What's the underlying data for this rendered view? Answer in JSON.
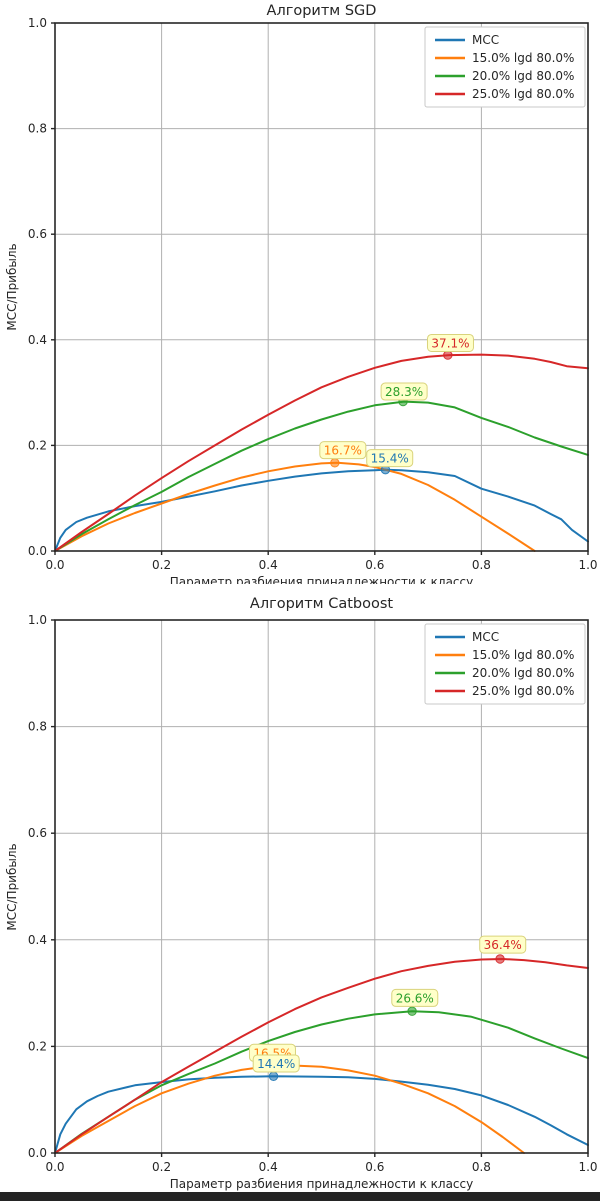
{
  "palette": {
    "blue": "#1f77b4",
    "orange": "#ff7f0e",
    "green": "#2ca02c",
    "red": "#d62728",
    "grid": "#b0b0b0",
    "spine": "#262626",
    "text": "#262626",
    "legend_bg": "#ffffff",
    "legend_border": "#c8c8c8",
    "annotation_bg": "#ffffc9",
    "annotation_border": "#d9d37c",
    "bottom_bar": "#242424"
  },
  "chart_data": [
    {
      "type": "line",
      "title": "Алгоритм SGD",
      "xlabel": "Параметр разбиения принадлежности к классу",
      "ylabel": "MCC/Прибыль",
      "xlim": [
        0.0,
        1.0
      ],
      "ylim": [
        0.0,
        1.0
      ],
      "xticks": [
        "0.0",
        "0.2",
        "0.4",
        "0.6",
        "0.8",
        "1.0"
      ],
      "yticks": [
        "0.0",
        "0.2",
        "0.4",
        "0.6",
        "0.8",
        "1.0"
      ],
      "grid": true,
      "legend_position": "upper right",
      "series": [
        {
          "name": "MCC",
          "color_key": "blue",
          "points": [
            [
              0,
              0
            ],
            [
              0.01,
              0.025
            ],
            [
              0.02,
              0.04
            ],
            [
              0.04,
              0.055
            ],
            [
              0.06,
              0.063
            ],
            [
              0.1,
              0.075
            ],
            [
              0.15,
              0.085
            ],
            [
              0.2,
              0.093
            ],
            [
              0.25,
              0.103
            ],
            [
              0.3,
              0.113
            ],
            [
              0.35,
              0.124
            ],
            [
              0.4,
              0.133
            ],
            [
              0.45,
              0.141
            ],
            [
              0.5,
              0.147
            ],
            [
              0.55,
              0.151
            ],
            [
              0.6,
              0.153
            ],
            [
              0.62,
              0.154
            ],
            [
              0.65,
              0.153
            ],
            [
              0.7,
              0.149
            ],
            [
              0.75,
              0.142
            ],
            [
              0.8,
              0.118
            ],
            [
              0.85,
              0.103
            ],
            [
              0.9,
              0.086
            ],
            [
              0.93,
              0.07
            ],
            [
              0.95,
              0.06
            ],
            [
              0.97,
              0.04
            ],
            [
              1.0,
              0.018
            ]
          ]
        },
        {
          "name": "15.0% lgd 80.0%",
          "color_key": "orange",
          "points": [
            [
              0,
              0
            ],
            [
              0.05,
              0.028
            ],
            [
              0.1,
              0.052
            ],
            [
              0.15,
              0.072
            ],
            [
              0.2,
              0.09
            ],
            [
              0.25,
              0.108
            ],
            [
              0.3,
              0.124
            ],
            [
              0.35,
              0.139
            ],
            [
              0.4,
              0.151
            ],
            [
              0.45,
              0.16
            ],
            [
              0.5,
              0.166
            ],
            [
              0.53,
              0.167
            ],
            [
              0.57,
              0.164
            ],
            [
              0.6,
              0.159
            ],
            [
              0.65,
              0.146
            ],
            [
              0.7,
              0.125
            ],
            [
              0.75,
              0.097
            ],
            [
              0.8,
              0.065
            ],
            [
              0.85,
              0.033
            ],
            [
              0.9,
              0.0
            ]
          ]
        },
        {
          "name": "20.0% lgd 80.0%",
          "color_key": "green",
          "points": [
            [
              0,
              0
            ],
            [
              0.05,
              0.032
            ],
            [
              0.1,
              0.06
            ],
            [
              0.15,
              0.087
            ],
            [
              0.2,
              0.112
            ],
            [
              0.25,
              0.14
            ],
            [
              0.3,
              0.165
            ],
            [
              0.35,
              0.19
            ],
            [
              0.4,
              0.212
            ],
            [
              0.45,
              0.232
            ],
            [
              0.5,
              0.249
            ],
            [
              0.55,
              0.264
            ],
            [
              0.6,
              0.276
            ],
            [
              0.655,
              0.283
            ],
            [
              0.7,
              0.281
            ],
            [
              0.75,
              0.272
            ],
            [
              0.8,
              0.252
            ],
            [
              0.85,
              0.235
            ],
            [
              0.9,
              0.215
            ],
            [
              0.95,
              0.198
            ],
            [
              1.0,
              0.182
            ]
          ]
        },
        {
          "name": "25.0% lgd 80.0%",
          "color_key": "red",
          "points": [
            [
              0,
              0
            ],
            [
              0.05,
              0.036
            ],
            [
              0.1,
              0.07
            ],
            [
              0.15,
              0.105
            ],
            [
              0.2,
              0.138
            ],
            [
              0.25,
              0.17
            ],
            [
              0.3,
              0.2
            ],
            [
              0.35,
              0.23
            ],
            [
              0.4,
              0.258
            ],
            [
              0.45,
              0.285
            ],
            [
              0.5,
              0.31
            ],
            [
              0.55,
              0.33
            ],
            [
              0.6,
              0.347
            ],
            [
              0.65,
              0.36
            ],
            [
              0.7,
              0.368
            ],
            [
              0.74,
              0.371
            ],
            [
              0.8,
              0.372
            ],
            [
              0.85,
              0.37
            ],
            [
              0.9,
              0.364
            ],
            [
              0.93,
              0.358
            ],
            [
              0.96,
              0.35
            ],
            [
              1.0,
              0.346
            ]
          ]
        }
      ],
      "annotations": [
        {
          "text": "16.7%",
          "color_key": "orange",
          "marker": [
            0.525,
            0.167
          ],
          "label_center": [
            0.54,
            0.191
          ]
        },
        {
          "text": "15.4%",
          "color_key": "blue",
          "marker": [
            0.62,
            0.154
          ],
          "label_center": [
            0.628,
            0.176
          ]
        },
        {
          "text": "28.3%",
          "color_key": "green",
          "marker": [
            0.653,
            0.283
          ],
          "label_center": [
            0.655,
            0.302
          ]
        },
        {
          "text": "37.1%",
          "color_key": "red",
          "marker": [
            0.737,
            0.371
          ],
          "label_center": [
            0.742,
            0.394
          ]
        }
      ]
    },
    {
      "type": "line",
      "title": "Алгоритм Catboost",
      "xlabel": "Параметр разбиения принадлежности к классу",
      "ylabel": "MCC/Прибыль",
      "xlim": [
        0.0,
        1.0
      ],
      "ylim": [
        0.0,
        1.0
      ],
      "xticks": [
        "0.0",
        "0.2",
        "0.4",
        "0.6",
        "0.8",
        "1.0"
      ],
      "yticks": [
        "0.0",
        "0.2",
        "0.4",
        "0.6",
        "0.8",
        "1.0"
      ],
      "grid": true,
      "legend_position": "upper right",
      "series": [
        {
          "name": "MCC",
          "color_key": "blue",
          "points": [
            [
              0,
              0
            ],
            [
              0.01,
              0.035
            ],
            [
              0.02,
              0.055
            ],
            [
              0.04,
              0.082
            ],
            [
              0.06,
              0.097
            ],
            [
              0.08,
              0.107
            ],
            [
              0.1,
              0.115
            ],
            [
              0.15,
              0.127
            ],
            [
              0.2,
              0.133
            ],
            [
              0.25,
              0.138
            ],
            [
              0.3,
              0.141
            ],
            [
              0.35,
              0.143
            ],
            [
              0.41,
              0.144
            ],
            [
              0.5,
              0.143
            ],
            [
              0.55,
              0.142
            ],
            [
              0.6,
              0.139
            ],
            [
              0.65,
              0.134
            ],
            [
              0.7,
              0.128
            ],
            [
              0.75,
              0.12
            ],
            [
              0.8,
              0.108
            ],
            [
              0.85,
              0.09
            ],
            [
              0.9,
              0.068
            ],
            [
              0.93,
              0.052
            ],
            [
              0.96,
              0.035
            ],
            [
              1.0,
              0.015
            ]
          ]
        },
        {
          "name": "15.0% lgd 80.0%",
          "color_key": "orange",
          "points": [
            [
              0,
              0
            ],
            [
              0.05,
              0.032
            ],
            [
              0.1,
              0.06
            ],
            [
              0.15,
              0.088
            ],
            [
              0.2,
              0.112
            ],
            [
              0.25,
              0.13
            ],
            [
              0.3,
              0.145
            ],
            [
              0.35,
              0.156
            ],
            [
              0.4,
              0.163
            ],
            [
              0.43,
              0.165
            ],
            [
              0.5,
              0.162
            ],
            [
              0.55,
              0.155
            ],
            [
              0.6,
              0.145
            ],
            [
              0.65,
              0.13
            ],
            [
              0.7,
              0.112
            ],
            [
              0.75,
              0.088
            ],
            [
              0.8,
              0.058
            ],
            [
              0.84,
              0.03
            ],
            [
              0.88,
              0.0
            ]
          ]
        },
        {
          "name": "20.0% lgd 80.0%",
          "color_key": "green",
          "points": [
            [
              0,
              0
            ],
            [
              0.05,
              0.036
            ],
            [
              0.1,
              0.068
            ],
            [
              0.15,
              0.1
            ],
            [
              0.2,
              0.127
            ],
            [
              0.25,
              0.148
            ],
            [
              0.3,
              0.168
            ],
            [
              0.35,
              0.19
            ],
            [
              0.4,
              0.21
            ],
            [
              0.45,
              0.227
            ],
            [
              0.5,
              0.241
            ],
            [
              0.55,
              0.252
            ],
            [
              0.6,
              0.26
            ],
            [
              0.67,
              0.266
            ],
            [
              0.72,
              0.264
            ],
            [
              0.78,
              0.256
            ],
            [
              0.85,
              0.235
            ],
            [
              0.9,
              0.215
            ],
            [
              0.95,
              0.196
            ],
            [
              1.0,
              0.178
            ]
          ]
        },
        {
          "name": "25.0% lgd 80.0%",
          "color_key": "red",
          "points": [
            [
              0,
              0
            ],
            [
              0.05,
              0.035
            ],
            [
              0.1,
              0.068
            ],
            [
              0.15,
              0.1
            ],
            [
              0.2,
              0.133
            ],
            [
              0.25,
              0.162
            ],
            [
              0.3,
              0.19
            ],
            [
              0.35,
              0.218
            ],
            [
              0.4,
              0.245
            ],
            [
              0.45,
              0.27
            ],
            [
              0.5,
              0.292
            ],
            [
              0.55,
              0.31
            ],
            [
              0.6,
              0.327
            ],
            [
              0.65,
              0.341
            ],
            [
              0.7,
              0.351
            ],
            [
              0.75,
              0.359
            ],
            [
              0.8,
              0.363
            ],
            [
              0.84,
              0.364
            ],
            [
              0.88,
              0.362
            ],
            [
              0.92,
              0.358
            ],
            [
              0.96,
              0.352
            ],
            [
              1.0,
              0.347
            ]
          ]
        }
      ],
      "annotations": [
        {
          "text": "16.5%",
          "color_key": "orange",
          "marker": [
            0.43,
            0.165
          ],
          "label_center": [
            0.408,
            0.188
          ]
        },
        {
          "text": "14.4%",
          "color_key": "blue",
          "marker": [
            0.41,
            0.144
          ],
          "label_center": [
            0.415,
            0.168
          ]
        },
        {
          "text": "26.6%",
          "color_key": "green",
          "marker": [
            0.67,
            0.266
          ],
          "label_center": [
            0.675,
            0.291
          ]
        },
        {
          "text": "36.4%",
          "color_key": "red",
          "marker": [
            0.835,
            0.364
          ],
          "label_center": [
            0.84,
            0.391
          ]
        }
      ]
    }
  ]
}
